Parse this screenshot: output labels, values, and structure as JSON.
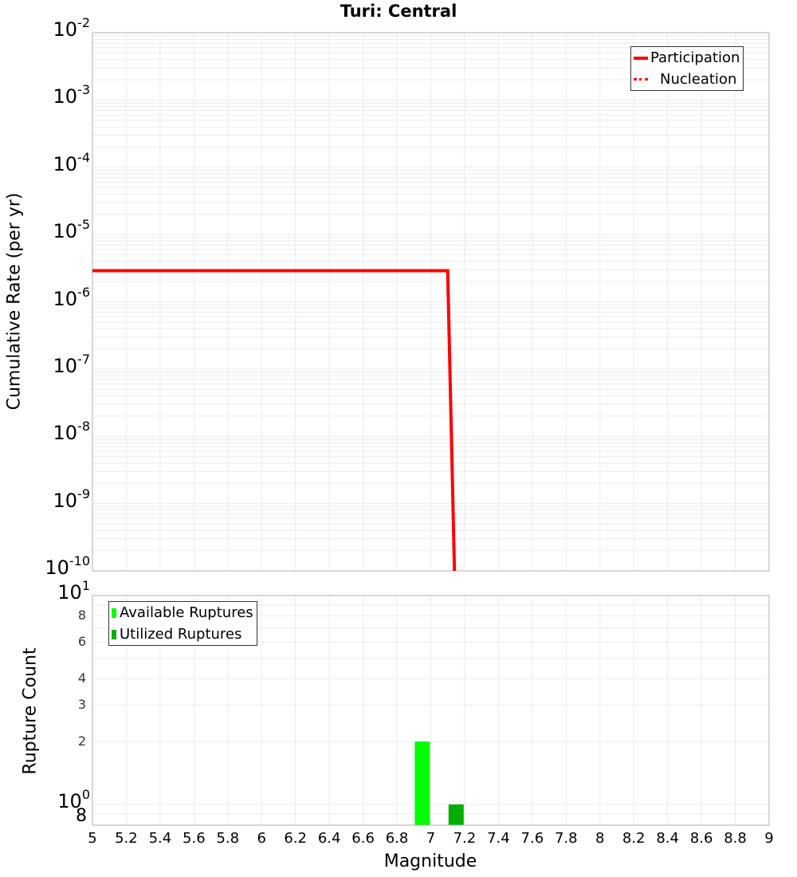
{
  "title": "Turi: Central",
  "colors": {
    "participation": "#ff0000",
    "nucleation": "#ff0000",
    "available": "#00ff00",
    "utilized": "#00b000",
    "grid": "#ebebeb",
    "axis": "#b0b0b0"
  },
  "top_panel": {
    "ylabel": "Cumulative Rate (per yr)",
    "legend": [
      {
        "label": "Participation",
        "style": "solid"
      },
      {
        "label": "Nucleation",
        "style": "dotted"
      }
    ],
    "yticks": [
      {
        "base": "10",
        "exp": "-2"
      },
      {
        "base": "10",
        "exp": "-3"
      },
      {
        "base": "10",
        "exp": "-4"
      },
      {
        "base": "10",
        "exp": "-5"
      },
      {
        "base": "10",
        "exp": "-6"
      },
      {
        "base": "10",
        "exp": "-7"
      },
      {
        "base": "10",
        "exp": "-8"
      },
      {
        "base": "10",
        "exp": "-9"
      },
      {
        "base": "10",
        "exp": "-10"
      }
    ]
  },
  "bottom_panel": {
    "ylabel": "Rupture Count",
    "legend": [
      {
        "label": "Available Ruptures"
      },
      {
        "label": "Utilized Ruptures"
      }
    ],
    "yticks_major": [
      {
        "base": "10",
        "exp": "1"
      },
      {
        "base": "10",
        "exp": "0"
      }
    ],
    "yticks_minor": [
      "8",
      "6",
      "4",
      "3",
      "2",
      "8"
    ]
  },
  "xaxis": {
    "label": "Magnitude",
    "ticks": [
      "5",
      "5.2",
      "5.4",
      "5.6",
      "5.8",
      "6",
      "6.2",
      "6.4",
      "6.6",
      "6.8",
      "7",
      "7.2",
      "7.4",
      "7.6",
      "7.8",
      "8",
      "8.2",
      "8.4",
      "8.6",
      "8.8",
      "9"
    ]
  },
  "chart_data": [
    {
      "type": "line",
      "title": "Turi: Central",
      "xlabel": "Magnitude",
      "ylabel": "Cumulative Rate (per yr)",
      "yscale": "log",
      "xlim": [
        5,
        9
      ],
      "ylim": [
        1e-10,
        0.01
      ],
      "grid": true,
      "legend_position": "upper right",
      "series": [
        {
          "name": "Participation",
          "style": "solid",
          "color": "#ff0000",
          "x": [
            5.0,
            7.1,
            7.14
          ],
          "y": [
            2.9e-06,
            2.9e-06,
            1e-10
          ]
        },
        {
          "name": "Nucleation",
          "style": "dotted",
          "color": "#ff0000",
          "x": [
            5.0,
            7.1,
            7.14
          ],
          "y": [
            2.9e-06,
            2.9e-06,
            1e-10
          ]
        }
      ]
    },
    {
      "type": "bar",
      "xlabel": "Magnitude",
      "ylabel": "Rupture Count",
      "yscale": "log",
      "xlim": [
        5,
        9
      ],
      "ylim": [
        0.8,
        10
      ],
      "grid": true,
      "legend_position": "upper left",
      "series": [
        {
          "name": "Available Ruptures",
          "color": "#00ff00",
          "x": [
            6.95
          ],
          "values": [
            2
          ]
        },
        {
          "name": "Utilized Ruptures",
          "color": "#00b000",
          "x": [
            7.15
          ],
          "values": [
            1
          ]
        }
      ]
    }
  ]
}
